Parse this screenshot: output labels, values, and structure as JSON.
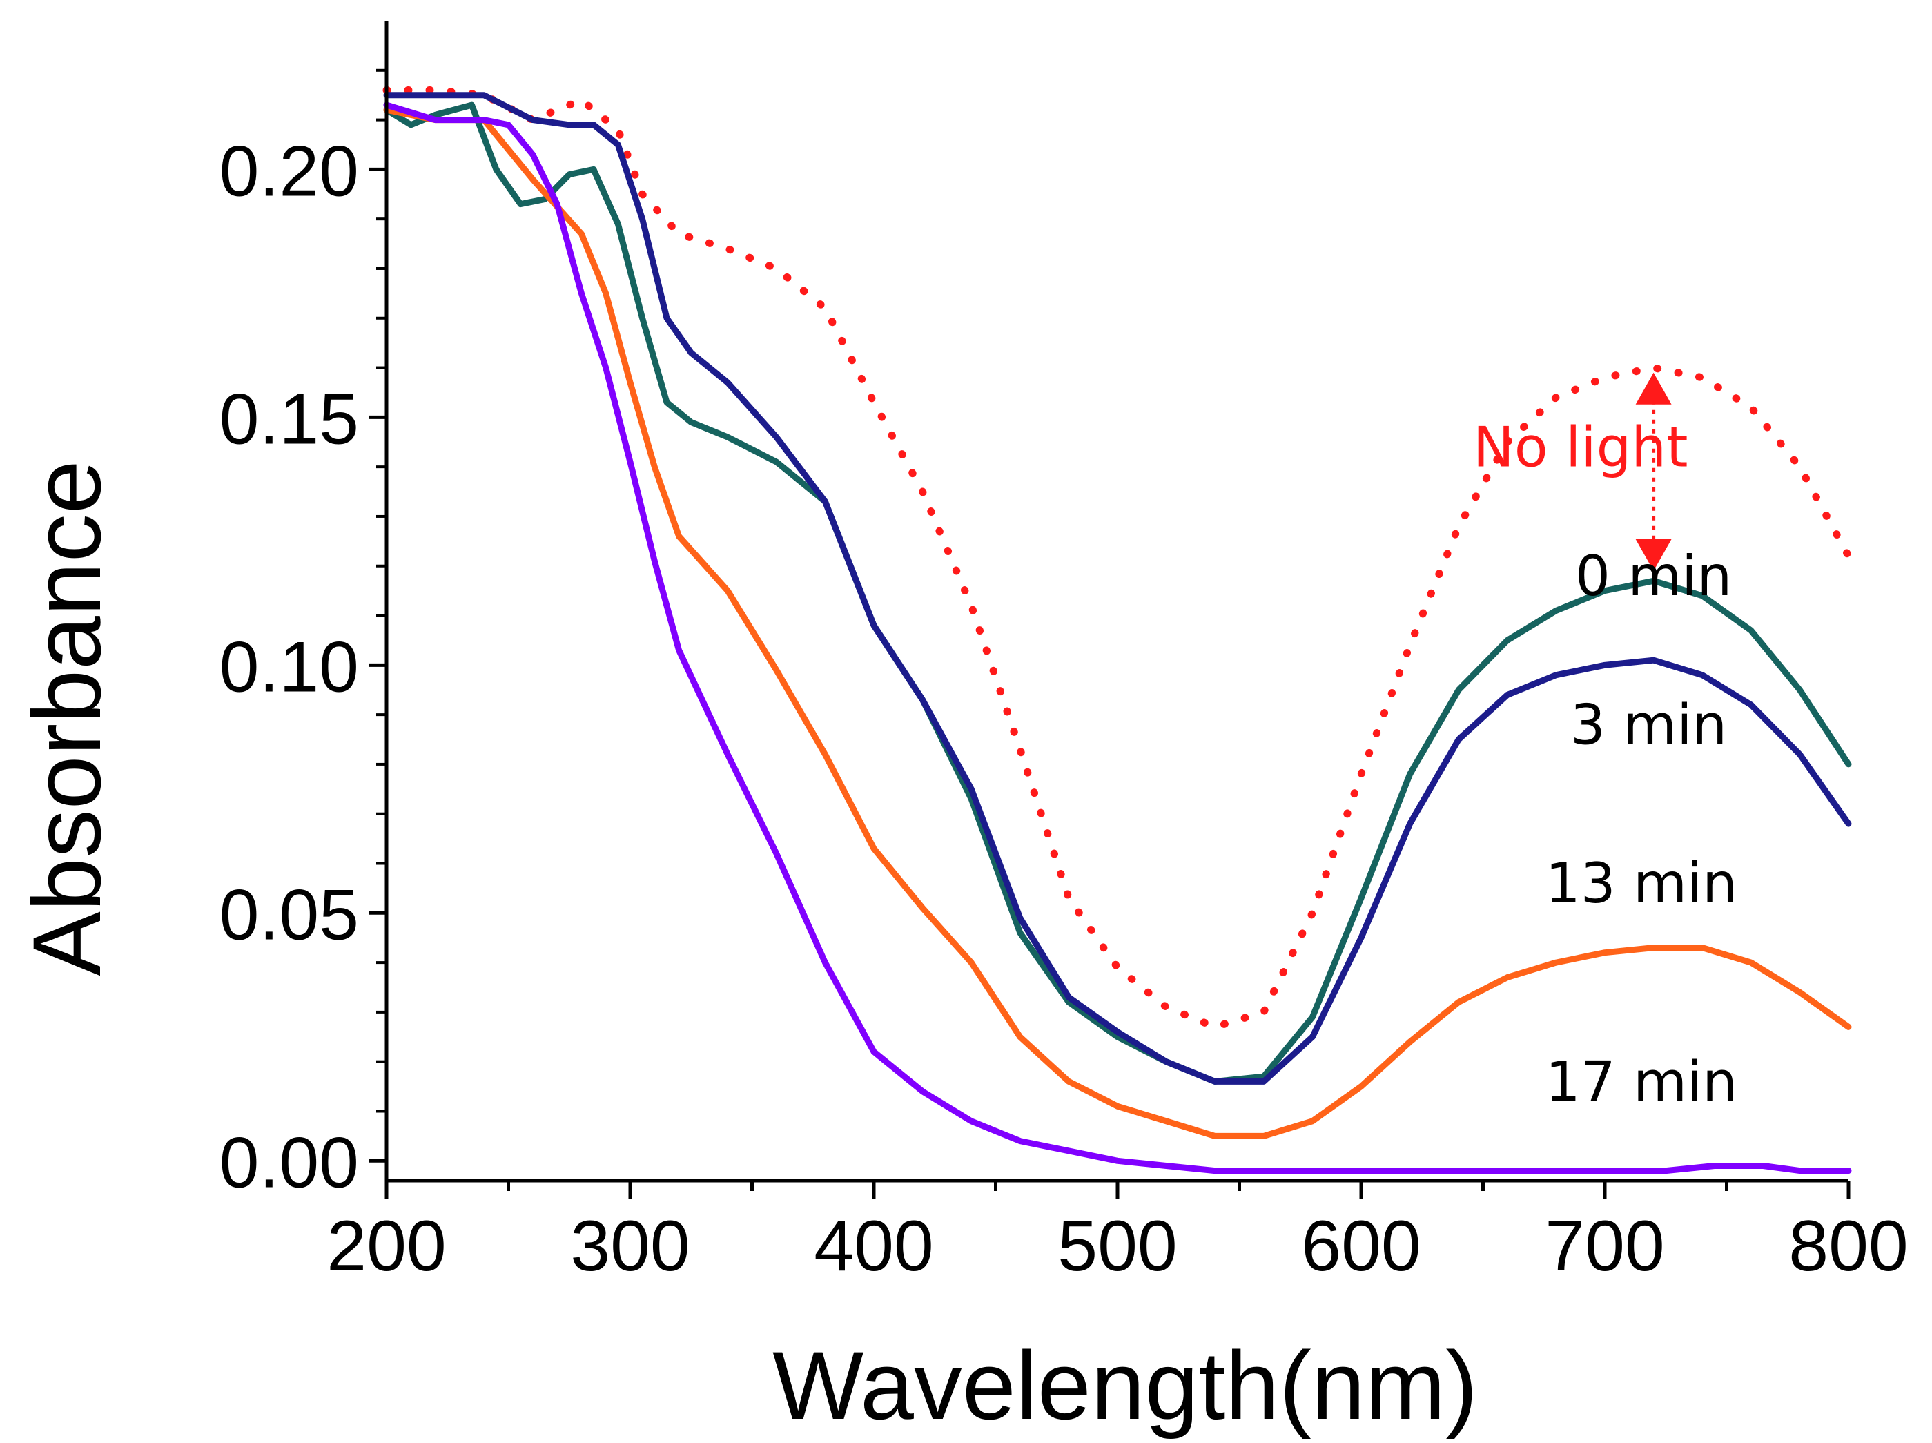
{
  "chart_data": {
    "type": "line",
    "title": "",
    "xlabel": "Wavelength(nm)",
    "ylabel": "Absorbance",
    "xlim": [
      200,
      800
    ],
    "ylim": [
      -0.004,
      0.23
    ],
    "xticks": [
      200,
      300,
      400,
      500,
      600,
      700,
      800
    ],
    "yticks": [
      0.0,
      0.05,
      0.1,
      0.15,
      0.2
    ],
    "xtick_labels": [
      "200",
      "300",
      "400",
      "500",
      "600",
      "700",
      "800"
    ],
    "ytick_labels": [
      "0.00",
      "0.05",
      "0.10",
      "0.15",
      "0.20"
    ],
    "grid": false,
    "series": [
      {
        "name": "No light",
        "color": "#ff1a1a",
        "style": "dotted",
        "x": [
          200,
          220,
          240,
          260,
          280,
          295,
          305,
          320,
          340,
          360,
          380,
          400,
          420,
          440,
          460,
          480,
          500,
          520,
          540,
          560,
          580,
          600,
          620,
          640,
          660,
          680,
          700,
          720,
          740,
          760,
          780,
          800
        ],
        "y": [
          0.216,
          0.216,
          0.215,
          0.21,
          0.214,
          0.208,
          0.195,
          0.187,
          0.184,
          0.18,
          0.172,
          0.153,
          0.135,
          0.112,
          0.083,
          0.053,
          0.039,
          0.031,
          0.027,
          0.03,
          0.05,
          0.078,
          0.104,
          0.128,
          0.145,
          0.154,
          0.158,
          0.16,
          0.158,
          0.152,
          0.14,
          0.122
        ]
      },
      {
        "name": "0 min",
        "color": "#16635f",
        "style": "solid",
        "x": [
          200,
          210,
          220,
          235,
          245,
          255,
          265,
          275,
          285,
          295,
          305,
          315,
          325,
          340,
          360,
          380,
          400,
          420,
          440,
          460,
          480,
          500,
          520,
          540,
          560,
          580,
          600,
          620,
          640,
          660,
          680,
          700,
          720,
          740,
          760,
          780,
          800
        ],
        "y": [
          0.212,
          0.209,
          0.211,
          0.213,
          0.2,
          0.193,
          0.194,
          0.199,
          0.2,
          0.189,
          0.17,
          0.153,
          0.149,
          0.146,
          0.141,
          0.133,
          0.108,
          0.093,
          0.073,
          0.046,
          0.032,
          0.025,
          0.02,
          0.016,
          0.017,
          0.029,
          0.053,
          0.078,
          0.095,
          0.105,
          0.111,
          0.115,
          0.117,
          0.114,
          0.107,
          0.095,
          0.08
        ]
      },
      {
        "name": "3 min",
        "color": "#1c1c8c",
        "style": "solid",
        "x": [
          200,
          220,
          240,
          260,
          275,
          285,
          295,
          305,
          315,
          325,
          340,
          360,
          380,
          400,
          420,
          440,
          460,
          480,
          500,
          520,
          540,
          560,
          580,
          600,
          620,
          640,
          660,
          680,
          700,
          720,
          740,
          760,
          780,
          800
        ],
        "y": [
          0.215,
          0.215,
          0.215,
          0.21,
          0.209,
          0.209,
          0.205,
          0.19,
          0.17,
          0.163,
          0.157,
          0.146,
          0.133,
          0.108,
          0.093,
          0.075,
          0.049,
          0.033,
          0.026,
          0.02,
          0.016,
          0.016,
          0.025,
          0.045,
          0.068,
          0.085,
          0.094,
          0.098,
          0.1,
          0.101,
          0.098,
          0.092,
          0.082,
          0.068
        ]
      },
      {
        "name": "13 min",
        "color": "#ff6319",
        "style": "solid",
        "x": [
          200,
          220,
          240,
          260,
          280,
          290,
          300,
          310,
          320,
          340,
          360,
          380,
          400,
          420,
          440,
          460,
          480,
          500,
          520,
          540,
          560,
          580,
          600,
          620,
          640,
          660,
          680,
          700,
          720,
          740,
          760,
          780,
          800
        ],
        "y": [
          0.212,
          0.21,
          0.21,
          0.198,
          0.187,
          0.175,
          0.157,
          0.14,
          0.126,
          0.115,
          0.099,
          0.082,
          0.063,
          0.051,
          0.04,
          0.025,
          0.016,
          0.011,
          0.008,
          0.005,
          0.005,
          0.008,
          0.015,
          0.024,
          0.032,
          0.037,
          0.04,
          0.042,
          0.043,
          0.043,
          0.04,
          0.034,
          0.027
        ]
      },
      {
        "name": "17 min",
        "color": "#8000ff",
        "style": "solid",
        "x": [
          200,
          220,
          240,
          250,
          260,
          270,
          280,
          290,
          300,
          310,
          320,
          340,
          360,
          380,
          400,
          420,
          440,
          460,
          480,
          500,
          520,
          540,
          560,
          600,
          650,
          700,
          725,
          745,
          765,
          780,
          800
        ],
        "y": [
          0.213,
          0.21,
          0.21,
          0.209,
          0.203,
          0.193,
          0.175,
          0.16,
          0.141,
          0.121,
          0.103,
          0.082,
          0.062,
          0.04,
          0.022,
          0.014,
          0.008,
          0.004,
          0.002,
          0.0,
          -0.001,
          -0.002,
          -0.002,
          -0.002,
          -0.002,
          -0.002,
          -0.002,
          -0.001,
          -0.001,
          -0.002,
          -0.002
        ]
      }
    ],
    "annotations": [
      {
        "text": "No light",
        "color": "#ff1a1a",
        "x": 690,
        "y": 0.144
      },
      {
        "text": "0 min",
        "color": "#000000",
        "x": 720,
        "y": 0.118
      },
      {
        "text": "3 min",
        "color": "#000000",
        "x": 718,
        "y": 0.088
      },
      {
        "text": "13 min",
        "color": "#000000",
        "x": 715,
        "y": 0.056
      },
      {
        "text": "17 min",
        "color": "#000000",
        "x": 715,
        "y": 0.016
      }
    ],
    "arrow": {
      "x": 720,
      "y_from": 0.119,
      "y_to": 0.159,
      "color": "#ff1a1a"
    }
  }
}
